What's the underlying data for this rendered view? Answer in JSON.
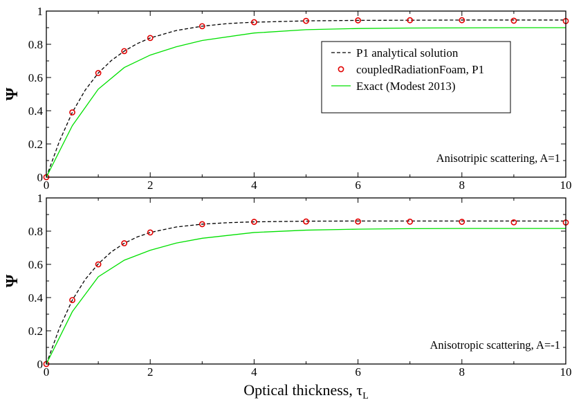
{
  "chart_data": [
    {
      "type": "line",
      "xlim": [
        0,
        10
      ],
      "ylim": [
        0,
        1
      ],
      "xticks": [
        0,
        2,
        4,
        6,
        8,
        10
      ],
      "yticks": [
        0,
        0.2,
        0.4,
        0.6,
        0.8,
        1
      ],
      "xtick_labels": [
        "0",
        "2",
        "4",
        "6",
        "8",
        "10"
      ],
      "ytick_labels": [
        "0",
        "0.2",
        "0.4",
        "0.6",
        "0.8",
        "1"
      ],
      "ylabel": "Ψ",
      "xlabel": "",
      "annotation": "Anisotripic scattering, A=1",
      "legend_placement": "upper-right",
      "legend": [
        {
          "label": "P1 analytical solution",
          "style": "dashed-line",
          "color": "#000000"
        },
        {
          "label": "coupledRadiationFoam, P1",
          "style": "circle-marker",
          "color": "#e00000"
        },
        {
          "label": "Exact (Modest 2013)",
          "style": "solid-line",
          "color": "#00e000"
        }
      ],
      "series": [
        {
          "name": "P1 analytical solution",
          "kind": "dashed",
          "color": "#000000",
          "x": [
            0,
            0.25,
            0.5,
            0.75,
            1,
            1.25,
            1.5,
            1.75,
            2,
            2.5,
            3,
            3.5,
            4,
            5,
            6,
            7,
            8,
            9,
            10
          ],
          "y": [
            0,
            0.215,
            0.39,
            0.525,
            0.627,
            0.702,
            0.759,
            0.804,
            0.838,
            0.883,
            0.909,
            0.925,
            0.933,
            0.941,
            0.944,
            0.945,
            0.946,
            0.946,
            0.946
          ]
        },
        {
          "name": "coupledRadiationFoam, P1",
          "kind": "markers",
          "color": "#e00000",
          "x": [
            0,
            0.5,
            1,
            1.5,
            2,
            3,
            4,
            5,
            6,
            7,
            8,
            9,
            10
          ],
          "y": [
            0,
            0.39,
            0.627,
            0.759,
            0.838,
            0.909,
            0.933,
            0.941,
            0.944,
            0.945,
            0.945,
            0.942,
            0.94
          ]
        },
        {
          "name": "Exact (Modest 2013)",
          "kind": "solid",
          "color": "#00e000",
          "x": [
            0,
            0.5,
            1,
            1.5,
            2,
            2.5,
            3,
            4,
            5,
            6,
            7,
            8,
            9,
            10
          ],
          "y": [
            0,
            0.31,
            0.53,
            0.66,
            0.735,
            0.785,
            0.823,
            0.868,
            0.888,
            0.895,
            0.898,
            0.899,
            0.9,
            0.9
          ]
        }
      ]
    },
    {
      "type": "line",
      "xlim": [
        0,
        10
      ],
      "ylim": [
        0,
        1
      ],
      "xticks": [
        0,
        2,
        4,
        6,
        8,
        10
      ],
      "yticks": [
        0,
        0.2,
        0.4,
        0.6,
        0.8,
        1
      ],
      "xtick_labels": [
        "0",
        "2",
        "4",
        "6",
        "8",
        "10"
      ],
      "ytick_labels": [
        "0",
        "0.2",
        "0.4",
        "0.6",
        "0.8",
        "1"
      ],
      "ylabel": "Ψ",
      "xlabel": "Optical thickness, τ",
      "xlabel_subscript": "L",
      "annotation": "Anisotropic scattering, A=-1",
      "series": [
        {
          "name": "P1 analytical solution",
          "kind": "dashed",
          "color": "#000000",
          "x": [
            0,
            0.25,
            0.5,
            0.75,
            1,
            1.25,
            1.5,
            1.75,
            2,
            2.5,
            3,
            3.5,
            4,
            5,
            6,
            7,
            8,
            9,
            10
          ],
          "y": [
            0,
            0.215,
            0.385,
            0.51,
            0.603,
            0.675,
            0.727,
            0.765,
            0.792,
            0.825,
            0.842,
            0.851,
            0.856,
            0.86,
            0.861,
            0.861,
            0.861,
            0.861,
            0.861
          ]
        },
        {
          "name": "coupledRadiationFoam, P1",
          "kind": "markers",
          "color": "#e00000",
          "x": [
            0,
            0.5,
            1,
            1.5,
            2,
            3,
            4,
            5,
            6,
            7,
            8,
            9,
            10
          ],
          "y": [
            0,
            0.385,
            0.6,
            0.727,
            0.792,
            0.842,
            0.856,
            0.858,
            0.858,
            0.857,
            0.856,
            0.853,
            0.852
          ]
        },
        {
          "name": "Exact (Modest 2013)",
          "kind": "solid",
          "color": "#00e000",
          "x": [
            0,
            0.5,
            1,
            1.5,
            2,
            2.5,
            3,
            4,
            5,
            6,
            7,
            8,
            9,
            10
          ],
          "y": [
            0,
            0.315,
            0.525,
            0.625,
            0.685,
            0.728,
            0.757,
            0.792,
            0.806,
            0.812,
            0.815,
            0.816,
            0.816,
            0.816
          ]
        }
      ]
    }
  ]
}
